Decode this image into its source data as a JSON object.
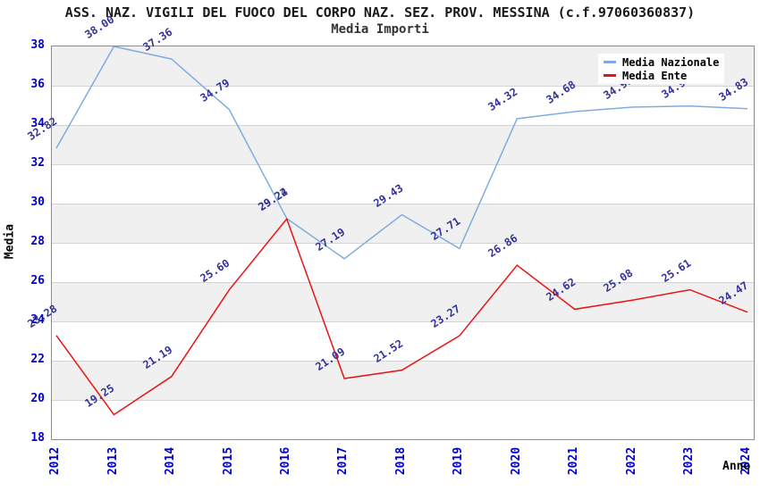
{
  "title": "ASS. NAZ. VIGILI DEL FUOCO DEL CORPO NAZ. SEZ. PROV. MESSINA (c.f.97060360837)",
  "subtitle": "Media Importi",
  "axes": {
    "y_label": "Media",
    "x_label": "Anno",
    "y_ticks": [
      38,
      36,
      34,
      32,
      30,
      28,
      26,
      24,
      22,
      20,
      18
    ],
    "y_min": 18,
    "y_max": 38
  },
  "legend": {
    "items": [
      {
        "label": "Media Nazionale",
        "color": "#7face0"
      },
      {
        "label": "Media Ente",
        "color": "#e81414"
      }
    ]
  },
  "colors": {
    "band": "#f0f0f0",
    "grid": "#d4d4d4",
    "plot_border": "#8c8c8c",
    "tick_text": "#0000cc",
    "data_label": "#333399",
    "blue_line": "#7face0",
    "red_line": "#e81414",
    "background": "#ffffff"
  },
  "chart_data": {
    "type": "line",
    "title": "Media Importi",
    "xlabel": "Anno",
    "ylabel": "Media",
    "ylim": [
      18,
      38
    ],
    "grid": true,
    "legend_position": "top-right",
    "x": [
      "2012",
      "2013",
      "2014",
      "2015",
      "2016",
      "2017",
      "2018",
      "2019",
      "2020",
      "2021",
      "2022",
      "2023",
      "2024"
    ],
    "series": [
      {
        "name": "Media Nazionale",
        "color": "#7face0",
        "values": [
          32.82,
          38.0,
          37.36,
          34.79,
          29.24,
          27.19,
          29.43,
          27.71,
          34.32,
          34.68,
          34.91,
          34.97,
          34.83
        ]
      },
      {
        "name": "Media Ente",
        "color": "#e81414",
        "values": [
          23.28,
          19.25,
          21.19,
          25.6,
          29.22,
          21.09,
          21.52,
          23.27,
          26.86,
          24.62,
          25.08,
          25.61,
          24.47
        ]
      }
    ]
  }
}
